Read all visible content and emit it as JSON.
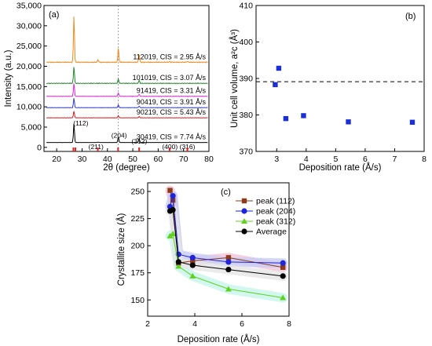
{
  "chart_data": [
    {
      "type": "line",
      "panel_label": "(a)",
      "xlabel": "2θ (degree)",
      "ylabel": "Intensity (a.u.)",
      "xlim": [
        15,
        80
      ],
      "ylim": [
        -1000,
        35000
      ],
      "x_ticks": [
        20,
        30,
        40,
        50,
        60,
        70,
        80
      ],
      "y_ticks": [
        0,
        5000,
        10000,
        15000,
        20000,
        25000,
        30000,
        35000
      ],
      "y_tick_labels": [
        "0",
        "5,000",
        "10,000",
        "15,000",
        "20,000",
        "25,000",
        "30,000",
        "35,000"
      ],
      "dashed_vline_x": 44.3,
      "series": [
        {
          "name": "112019, CIS = 2.95 Å/s",
          "color": "#f28a1c",
          "baseline": 21000,
          "peaks": [
            [
              26.8,
              11500
            ],
            [
              36.3,
              600
            ],
            [
              44.3,
              3500
            ],
            [
              52.5,
              1900
            ],
            [
              64.6,
              200
            ],
            [
              71.5,
              200
            ]
          ]
        },
        {
          "name": "101019, CIS = 3.07 Å/s",
          "color": "#1f8a2a",
          "baseline": 15800,
          "peaks": [
            [
              26.8,
              4200
            ],
            [
              44.3,
              1100
            ],
            [
              52.5,
              700
            ]
          ]
        },
        {
          "name": "91419, CIS = 3.31 Å/s",
          "color": "#e326e3",
          "baseline": 12600,
          "peaks": [
            [
              26.8,
              3300
            ],
            [
              44.3,
              900
            ],
            [
              52.5,
              500
            ]
          ]
        },
        {
          "name": "90419, CIS = 3.91 Å/s",
          "color": "#2a3bd6",
          "baseline": 9800,
          "peaks": [
            [
              26.8,
              2400
            ],
            [
              44.3,
              700
            ],
            [
              52.5,
              400
            ]
          ]
        },
        {
          "name": "90219, CIS = 5.43 Å/s",
          "color": "#d81b1b",
          "baseline": 7300,
          "peaks": [
            [
              26.8,
              1700
            ],
            [
              44.3,
              500
            ],
            [
              52.5,
              300
            ]
          ]
        },
        {
          "name": "30419, CIS = 7.74 Å/s",
          "color": "#000000",
          "baseline": 1200,
          "peaks": [
            [
              26.8,
              4700
            ],
            [
              44.3,
              1400
            ],
            [
              52.5,
              900
            ],
            [
              36.3,
              100
            ],
            [
              64.6,
              100
            ]
          ]
        }
      ],
      "annotations": [
        {
          "text": "(112)",
          "x": 29.5,
          "y": 5400
        },
        {
          "text": "(211)",
          "x": 35.5,
          "y": -400
        },
        {
          "text": "(204)",
          "x": 44.6,
          "y": 2400
        },
        {
          "text": "(312)",
          "x": 52.6,
          "y": 900
        },
        {
          "text": "(400)",
          "x": 64.6,
          "y": -400
        },
        {
          "text": "(316)",
          "x": 71.5,
          "y": -400
        }
      ],
      "reference_ticks": [
        26.6,
        27.4,
        36.2,
        44.2,
        52.5,
        64.5,
        71.5
      ]
    },
    {
      "type": "scatter",
      "panel_label": "(b)",
      "xlabel": "Deposition rate (Å/s)",
      "ylabel": "Unit cell volume, a²c (Å³)",
      "xlim": [
        2.3,
        8.0
      ],
      "ylim": [
        370,
        410
      ],
      "x_ticks": [
        3,
        4,
        5,
        6,
        7,
        8
      ],
      "y_ticks": [
        370,
        380,
        390,
        400,
        410
      ],
      "reference_line_y": 389.1,
      "color": "#1a2fd6",
      "points": [
        [
          2.95,
          388.3
        ],
        [
          3.07,
          392.8
        ],
        [
          3.31,
          379.0
        ],
        [
          3.91,
          379.8
        ],
        [
          5.43,
          378.1
        ],
        [
          7.6,
          378.0
        ]
      ]
    },
    {
      "type": "line",
      "panel_label": "(c)",
      "xlabel": "Deposition rate (Å/s)",
      "ylabel": "Crystallite size (Å)",
      "xlim": [
        2,
        8
      ],
      "ylim": [
        135,
        258
      ],
      "x_ticks": [
        2,
        4,
        6,
        8
      ],
      "y_ticks": [
        150,
        175,
        200,
        225,
        250
      ],
      "x": [
        2.95,
        3.07,
        3.31,
        3.91,
        5.43,
        7.74
      ],
      "series": [
        {
          "name": "peak (112)",
          "color": "#8b3a1a",
          "band": "#f4c4d8",
          "marker": "square",
          "values": [
            251,
            242,
            184,
            186,
            189,
            180
          ]
        },
        {
          "name": "peak (204)",
          "color": "#1f25d6",
          "band": "#c8cdf5",
          "marker": "circle",
          "values": [
            236,
            246,
            192,
            189,
            185,
            184
          ]
        },
        {
          "name": "peak (312)",
          "color": "#5fd21e",
          "band": "#c6f5ea",
          "marker": "triangle",
          "values": [
            209,
            211,
            181,
            172,
            160,
            152
          ]
        },
        {
          "name": "Average",
          "color": "#000000",
          "band": "#e6e6e6",
          "marker": "circle",
          "values": [
            232,
            233,
            185,
            182,
            178,
            172
          ]
        }
      ]
    }
  ]
}
